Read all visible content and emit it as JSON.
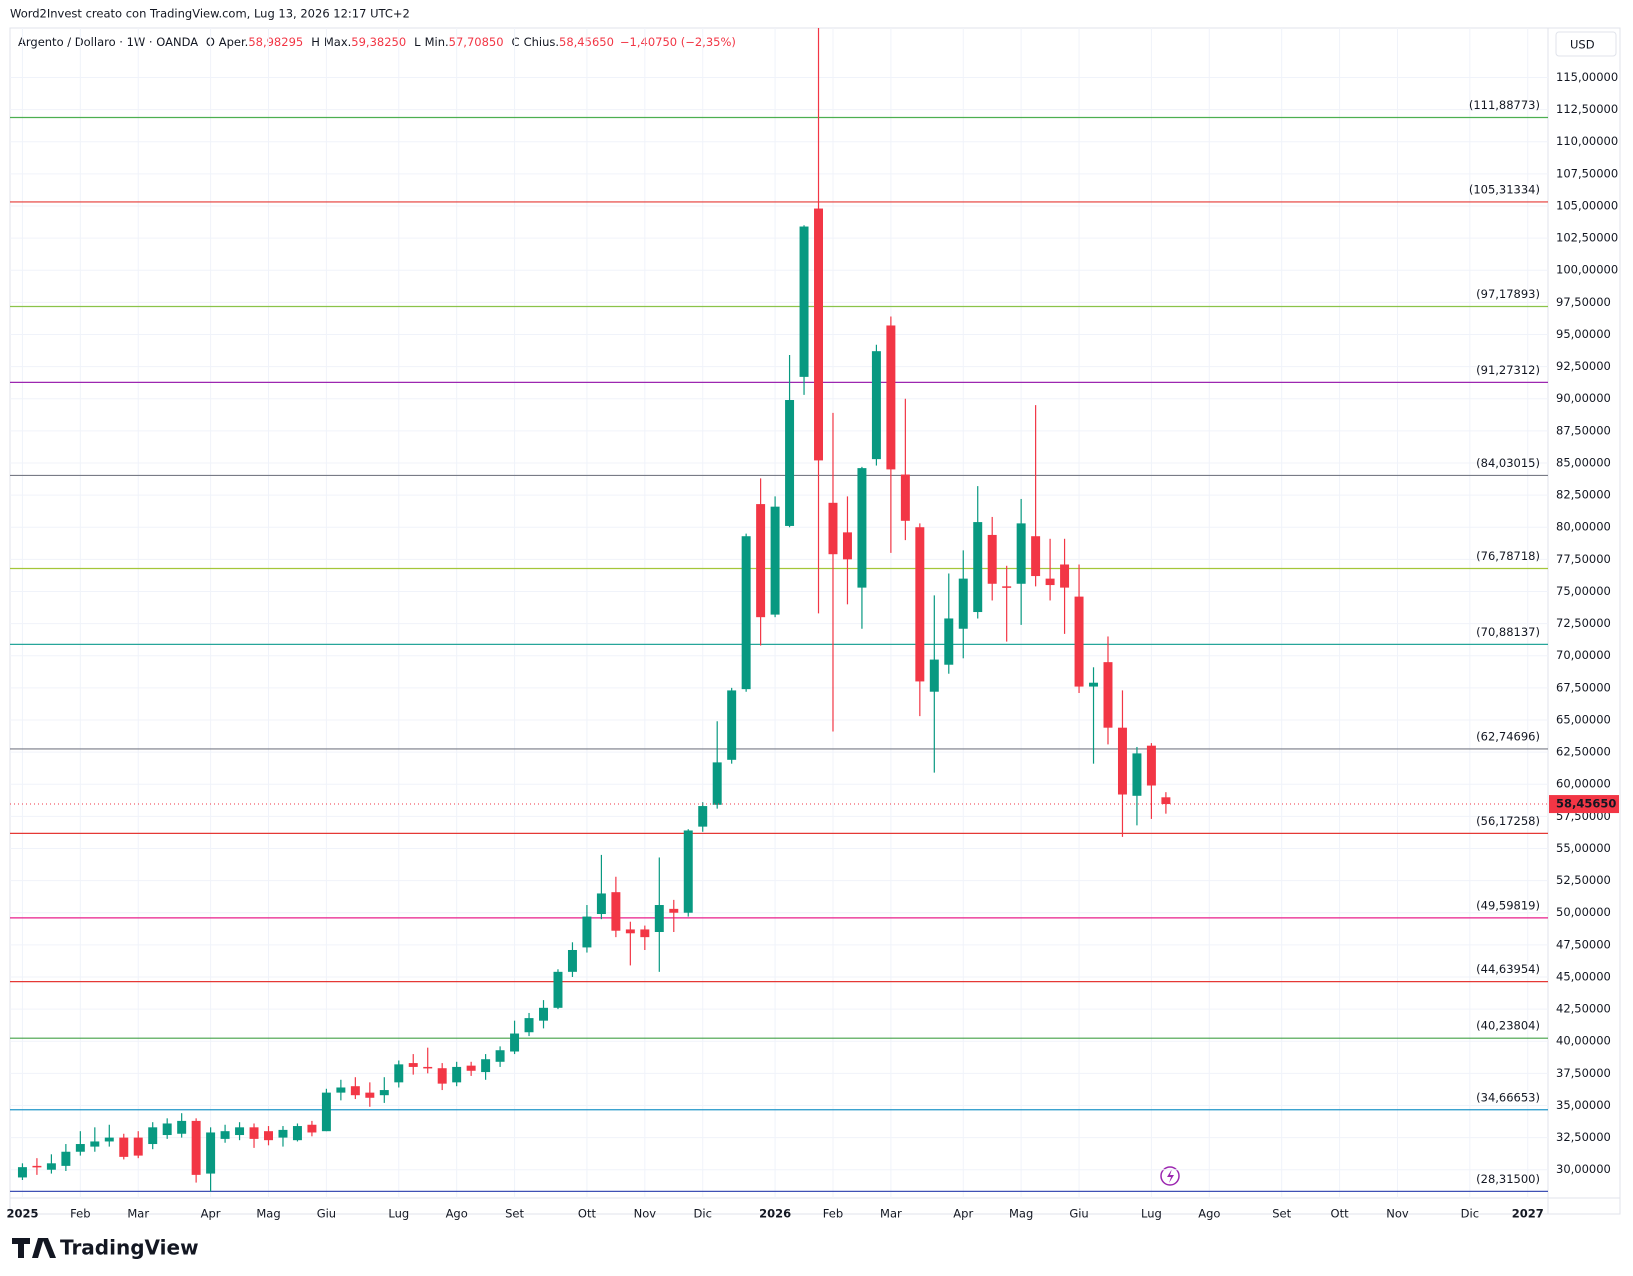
{
  "chart_data": {
    "type": "candlestick",
    "header": "Word2Invest creato con TradingView.com, Lug 13, 2026 12:17 UTC+2",
    "legend": {
      "symbol": "Argento / Dollaro · 1W · OANDA",
      "fields": [
        {
          "key": "O",
          "name": "Aper.",
          "value": "58,98295"
        },
        {
          "key": "H",
          "name": "Max.",
          "value": "59,38250"
        },
        {
          "key": "L",
          "name": "Min.",
          "value": "57,70850"
        },
        {
          "key": "C",
          "name": "Chius.",
          "value": "58,45650"
        }
      ],
      "change": "−1,40750 (−2,35%)"
    },
    "currency": "USD",
    "brand": "TradingView",
    "up_color": "#089981",
    "down_color": "#f23645",
    "grid": true,
    "open": [
      29.4,
      30.3,
      30.0,
      30.3,
      31.4,
      31.8,
      32.2,
      32.5,
      32.5,
      32.0,
      32.7,
      32.8,
      33.8,
      29.7,
      32.4,
      32.7,
      33.3,
      33.0,
      32.5,
      32.3,
      33.5,
      33.0,
      36.0,
      36.5,
      36.0,
      35.8,
      36.8,
      38.3,
      38.0,
      37.9,
      36.8,
      38.1,
      37.6,
      38.4,
      39.2,
      40.7,
      41.6,
      42.6,
      45.4,
      47.3,
      49.9,
      51.6,
      48.7,
      48.7,
      48.5,
      50.3,
      50.0,
      56.7,
      58.4,
      61.9,
      67.4,
      81.8,
      73.2,
      80.1,
      91.7,
      104.8,
      81.9,
      79.6,
      75.3,
      85.3,
      95.7,
      84.1,
      80.0,
      67.2,
      69.3,
      72.1,
      73.4,
      79.4,
      75.4,
      75.6,
      79.3,
      76.0,
      77.1,
      74.6,
      67.6,
      69.5,
      64.4,
      59.1,
      63.0,
      58.98295
    ],
    "high": [
      30.5,
      30.9,
      31.2,
      32.0,
      33.0,
      33.3,
      33.5,
      32.8,
      33.0,
      33.7,
      34.0,
      34.4,
      34.0,
      33.3,
      33.5,
      33.7,
      33.6,
      33.4,
      33.4,
      33.6,
      33.8,
      36.3,
      37.0,
      37.2,
      36.8,
      37.2,
      38.5,
      39.0,
      39.5,
      38.3,
      38.4,
      38.4,
      39.0,
      39.6,
      41.6,
      42.2,
      43.2,
      45.6,
      47.7,
      50.6,
      54.5,
      52.8,
      49.3,
      49.0,
      54.3,
      51.0,
      56.5,
      58.6,
      64.9,
      67.5,
      79.5,
      83.8,
      82.4,
      93.4,
      103.5,
      121.6,
      88.9,
      82.4,
      84.7,
      94.2,
      96.4,
      90.0,
      80.3,
      74.7,
      76.4,
      78.2,
      83.2,
      80.8,
      77.0,
      82.2,
      89.5,
      79.1,
      79.1,
      77.1,
      69.1,
      71.5,
      67.3,
      62.9,
      63.2,
      59.3825
    ],
    "low": [
      29.2,
      29.6,
      29.7,
      29.9,
      31.1,
      31.4,
      31.8,
      30.8,
      30.9,
      31.6,
      32.4,
      32.5,
      29.0,
      28.3,
      32.1,
      32.3,
      31.7,
      31.9,
      31.8,
      32.2,
      32.6,
      33.0,
      35.4,
      35.5,
      34.9,
      35.2,
      36.4,
      37.4,
      37.5,
      36.2,
      36.5,
      37.3,
      37.0,
      38.0,
      39.0,
      40.4,
      41.0,
      42.5,
      45.0,
      46.9,
      49.5,
      48.1,
      45.9,
      47.1,
      45.4,
      48.5,
      49.7,
      56.3,
      58.1,
      61.6,
      67.2,
      70.8,
      73.0,
      80.0,
      90.3,
      73.3,
      64.1,
      74.0,
      72.1,
      84.8,
      78.0,
      79.0,
      65.3,
      60.9,
      68.6,
      69.8,
      72.9,
      74.3,
      71.1,
      72.4,
      75.4,
      74.3,
      71.7,
      67.1,
      61.6,
      63.1,
      55.9,
      56.8,
      57.3,
      57.7085
    ],
    "close": [
      30.2,
      30.2,
      30.5,
      31.4,
      32.0,
      32.2,
      32.5,
      31.0,
      31.1,
      33.3,
      33.6,
      33.8,
      29.6,
      32.9,
      33.0,
      33.3,
      32.4,
      32.3,
      33.1,
      33.4,
      32.9,
      36.0,
      36.4,
      35.8,
      35.6,
      36.2,
      38.2,
      38.0,
      37.9,
      36.7,
      38.0,
      37.7,
      38.6,
      39.3,
      40.6,
      41.8,
      42.6,
      45.4,
      47.1,
      49.7,
      51.5,
      48.6,
      48.4,
      48.1,
      50.6,
      50.0,
      56.4,
      58.3,
      61.7,
      67.3,
      79.3,
      73.0,
      81.6,
      89.9,
      103.4,
      85.2,
      77.9,
      77.5,
      84.6,
      93.7,
      84.5,
      80.5,
      68.0,
      69.7,
      72.9,
      76.0,
      80.4,
      75.6,
      75.3,
      80.3,
      76.2,
      75.5,
      75.3,
      67.6,
      67.9,
      64.4,
      59.2,
      62.4,
      59.9,
      58.4565
    ],
    "last_price": {
      "value": 58.4565,
      "label": "58,45650"
    },
    "levels": [
      {
        "value": 111.88773,
        "label": "(111,88773)",
        "color": "#4caf50"
      },
      {
        "value": 105.31334,
        "label": "(105,31334)",
        "color": "#e53935"
      },
      {
        "value": 97.17893,
        "label": "(97,17893)",
        "color": "#8bc34a"
      },
      {
        "value": 91.27312,
        "label": "(91,27312)",
        "color": "#9c27b0"
      },
      {
        "value": 84.03015,
        "label": "(84,03015)",
        "color": "#787b86"
      },
      {
        "value": 76.78718,
        "label": "(76,78718)",
        "color": "#a4c639"
      },
      {
        "value": 70.88137,
        "label": "(70,88137)",
        "color": "#26a69a"
      },
      {
        "value": 62.74696,
        "label": "(62,74696)",
        "color": "#787b86"
      },
      {
        "value": 56.17258,
        "label": "(56,17258)",
        "color": "#e53935"
      },
      {
        "value": 49.59819,
        "label": "(49,59819)",
        "color": "#e91e8c"
      },
      {
        "value": 44.63954,
        "label": "(44,63954)",
        "color": "#e53935"
      },
      {
        "value": 40.23804,
        "label": "(40,23804)",
        "color": "#43a047"
      },
      {
        "value": 34.66653,
        "label": "(34,66653)",
        "color": "#2196c9"
      },
      {
        "value": 28.315,
        "label": "(28,31500)",
        "color": "#3f51b5"
      }
    ],
    "xlim": [
      -0.86,
      105.4
    ],
    "xticks": [
      {
        "value": 0,
        "label": "2025"
      },
      {
        "value": 4,
        "label": "Feb"
      },
      {
        "value": 8,
        "label": "Mar"
      },
      {
        "value": 13,
        "label": "Apr"
      },
      {
        "value": 17,
        "label": "Mag"
      },
      {
        "value": 21,
        "label": "Giu"
      },
      {
        "value": 26,
        "label": "Lug"
      },
      {
        "value": 30,
        "label": "Ago"
      },
      {
        "value": 34,
        "label": "Set"
      },
      {
        "value": 39,
        "label": "Ott"
      },
      {
        "value": 43,
        "label": "Nov"
      },
      {
        "value": 47,
        "label": "Dic"
      },
      {
        "value": 52,
        "label": "2026"
      },
      {
        "value": 56,
        "label": "Feb"
      },
      {
        "value": 60,
        "label": "Mar"
      },
      {
        "value": 65,
        "label": "Apr"
      },
      {
        "value": 69,
        "label": "Mag"
      },
      {
        "value": 73,
        "label": "Giu"
      },
      {
        "value": 78,
        "label": "Lug"
      },
      {
        "value": 82,
        "label": "Ago"
      },
      {
        "value": 87,
        "label": "Set"
      },
      {
        "value": 91,
        "label": "Ott"
      },
      {
        "value": 95,
        "label": "Nov"
      },
      {
        "value": 100,
        "label": "Dic"
      },
      {
        "value": 104,
        "label": "2027"
      }
    ],
    "ylim": [
      27.8,
      118.85
    ],
    "yticks": [
      {
        "value": 30,
        "label": "30,00000"
      },
      {
        "value": 32.5,
        "label": "32,50000"
      },
      {
        "value": 35,
        "label": "35,00000"
      },
      {
        "value": 37.5,
        "label": "37,50000"
      },
      {
        "value": 40,
        "label": "40,00000"
      },
      {
        "value": 42.5,
        "label": "42,50000"
      },
      {
        "value": 45,
        "label": "45,00000"
      },
      {
        "value": 47.5,
        "label": "47,50000"
      },
      {
        "value": 50,
        "label": "50,00000"
      },
      {
        "value": 52.5,
        "label": "52,50000"
      },
      {
        "value": 55,
        "label": "55,00000"
      },
      {
        "value": 57.5,
        "label": "57,50000"
      },
      {
        "value": 60,
        "label": "60,00000"
      },
      {
        "value": 62.5,
        "label": "62,50000"
      },
      {
        "value": 65,
        "label": "65,00000"
      },
      {
        "value": 67.5,
        "label": "67,50000"
      },
      {
        "value": 70,
        "label": "70,00000"
      },
      {
        "value": 72.5,
        "label": "72,50000"
      },
      {
        "value": 75,
        "label": "75,00000"
      },
      {
        "value": 77.5,
        "label": "77,50000"
      },
      {
        "value": 80,
        "label": "80,00000"
      },
      {
        "value": 82.5,
        "label": "82,50000"
      },
      {
        "value": 85,
        "label": "85,00000"
      },
      {
        "value": 87.5,
        "label": "87,50000"
      },
      {
        "value": 90,
        "label": "90,00000"
      },
      {
        "value": 92.5,
        "label": "92,50000"
      },
      {
        "value": 95,
        "label": "95,00000"
      },
      {
        "value": 97.5,
        "label": "97,50000"
      },
      {
        "value": 100,
        "label": "100,00000"
      },
      {
        "value": 102.5,
        "label": "102,50000"
      },
      {
        "value": 105,
        "label": "105,00000"
      },
      {
        "value": 107.5,
        "label": "107,50000"
      },
      {
        "value": 110,
        "label": "110,00000"
      },
      {
        "value": 112.5,
        "label": "112,50000"
      },
      {
        "value": 115,
        "label": "115,00000"
      }
    ]
  }
}
